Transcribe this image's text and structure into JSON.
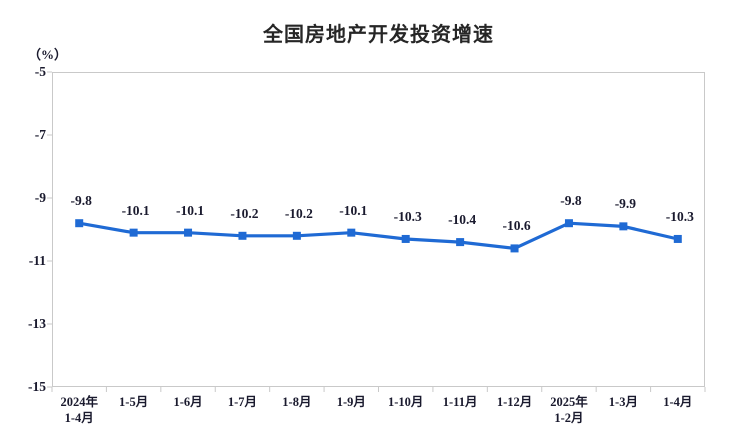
{
  "chart_data": {
    "type": "line",
    "title": "全国房地产开发投资增速",
    "unit_label": "（%）",
    "categories": [
      "2024年\n1-4月",
      "1-5月",
      "1-6月",
      "1-7月",
      "1-8月",
      "1-9月",
      "1-10月",
      "1-11月",
      "1-12月",
      "2025年\n1-2月",
      "1-3月",
      "1-4月"
    ],
    "values": [
      -9.8,
      -10.1,
      -10.1,
      -10.2,
      -10.2,
      -10.1,
      -10.3,
      -10.4,
      -10.6,
      -9.8,
      -9.9,
      -10.3
    ],
    "data_labels": [
      "-9.8",
      "-10.1",
      "-10.1",
      "-10.2",
      "-10.2",
      "-10.1",
      "-10.3",
      "-10.4",
      "-10.6",
      "-9.8",
      "-9.9",
      "-10.3"
    ],
    "ylim": [
      -15,
      -5
    ],
    "yticks": [
      "-5",
      "-7",
      "-9",
      "-11",
      "-13",
      "-15"
    ],
    "ytick_values": [
      -5,
      -7,
      -9,
      -11,
      -13,
      -15
    ],
    "grid": false,
    "legend": "none",
    "marker": "square",
    "colors": {
      "line": "#1f6ad4",
      "marker": "#1f6ad4",
      "axis_border": "#c9c9c9",
      "text": "#1a1a2e",
      "title": "#262626",
      "background": "#ffffff"
    }
  }
}
